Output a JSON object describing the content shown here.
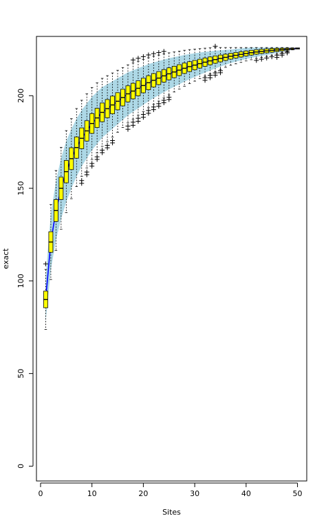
{
  "chart_data": {
    "type": "box",
    "xlabel": "Sites",
    "ylabel": "exact",
    "xlim": [
      -0.8,
      51.8
    ],
    "ylim": [
      -8,
      232
    ],
    "x_ticks": [
      0,
      10,
      20,
      30,
      40,
      50
    ],
    "y_ticks": [
      0,
      50,
      100,
      150,
      200
    ],
    "grid": false,
    "legend": "none",
    "colors": {
      "band": "#add8e6",
      "line": "#0000ff",
      "box_fill": "#ffff00",
      "box_stroke": "#000000"
    },
    "series": [
      {
        "sites": [
          1,
          2,
          3,
          4,
          5,
          6,
          7,
          8,
          9,
          10,
          11,
          12,
          13,
          14,
          15,
          16,
          17,
          18,
          19,
          20,
          21,
          22,
          23,
          24,
          25,
          26,
          27,
          28,
          29,
          30,
          31,
          32,
          33,
          34,
          35,
          36,
          37,
          38,
          39,
          40,
          41,
          42,
          43,
          44,
          45,
          46,
          47,
          48,
          49,
          50
        ],
        "exact": [
          90,
          121,
          138,
          150,
          159,
          166,
          172,
          177,
          181,
          185,
          188,
          191,
          193,
          195,
          197,
          199,
          201,
          202.5,
          204,
          205.5,
          207,
          208.3,
          209.5,
          210.7,
          211.8,
          212.8,
          213.8,
          214.8,
          215.7,
          216.5,
          217.3,
          218.1,
          218.8,
          219.5,
          220.1,
          220.7,
          221.3,
          221.8,
          222.3,
          222.8,
          223.2,
          223.6,
          223.9,
          224.2,
          224.5,
          224.7,
          224.9,
          225.1,
          225.3,
          225.5
        ],
        "sd": [
          6,
          7.5,
          8,
          8.2,
          8.2,
          8,
          7.8,
          7.6,
          7.4,
          7.2,
          7,
          6.8,
          6.6,
          6.4,
          6.2,
          6,
          5.8,
          5.6,
          5.4,
          5.2,
          5,
          4.8,
          4.6,
          4.4,
          4.2,
          4,
          3.8,
          3.6,
          3.4,
          3.2,
          3,
          2.8,
          2.6,
          2.4,
          2.2,
          2,
          1.8,
          1.7,
          1.6,
          1.5,
          1.4,
          1.3,
          1.2,
          1.1,
          1,
          0.8,
          0.6,
          0.4,
          0.2,
          0
        ]
      }
    ]
  }
}
